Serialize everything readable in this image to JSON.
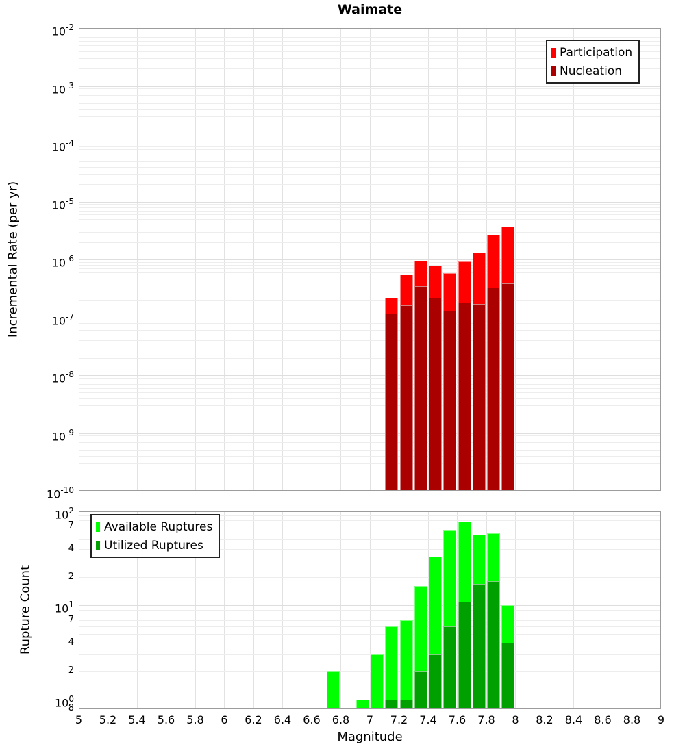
{
  "title": "Waimate",
  "x_axis": {
    "label": "Magnitude",
    "min": 5,
    "max": 9,
    "ticks": [
      {
        "value": 5,
        "label": "5"
      },
      {
        "value": 5.2,
        "label": "5.2"
      },
      {
        "value": 5.4,
        "label": "5.4"
      },
      {
        "value": 5.6,
        "label": "5.6"
      },
      {
        "value": 5.8,
        "label": "5.8"
      },
      {
        "value": 6,
        "label": "6"
      },
      {
        "value": 6.2,
        "label": "6.2"
      },
      {
        "value": 6.4,
        "label": "6.4"
      },
      {
        "value": 6.6,
        "label": "6.6"
      },
      {
        "value": 6.8,
        "label": "6.8"
      },
      {
        "value": 7,
        "label": "7"
      },
      {
        "value": 7.2,
        "label": "7.2"
      },
      {
        "value": 7.4,
        "label": "7.4"
      },
      {
        "value": 7.6,
        "label": "7.6"
      },
      {
        "value": 7.8,
        "label": "7.8"
      },
      {
        "value": 8,
        "label": "8"
      },
      {
        "value": 8.2,
        "label": "8.2"
      },
      {
        "value": 8.4,
        "label": "8.4"
      },
      {
        "value": 8.6,
        "label": "8.6"
      },
      {
        "value": 8.8,
        "label": "8.8"
      },
      {
        "value": 9,
        "label": "9"
      }
    ]
  },
  "top_panel": {
    "ylabel": "Incremental Rate (per yr)",
    "y_major_exponents": [
      -2,
      -3,
      -4,
      -5,
      -6,
      -7,
      -8,
      -9,
      -10
    ],
    "legend": [
      {
        "label": "Participation",
        "color": "#ff0000"
      },
      {
        "label": "Nucleation",
        "color": "#aa0000"
      }
    ]
  },
  "bottom_panel": {
    "ylabel": "Rupture Count",
    "y_major_exponents": [
      2,
      1,
      0
    ],
    "y_minor_labeled_ticks": [
      {
        "value": 70,
        "label": "7"
      },
      {
        "value": 40,
        "label": "4"
      },
      {
        "value": 20,
        "label": "2"
      },
      {
        "value": 7,
        "label": "7"
      },
      {
        "value": 4,
        "label": "4"
      },
      {
        "value": 2,
        "label": "2"
      },
      {
        "value": 0.8,
        "label": "8"
      }
    ],
    "legend": [
      {
        "label": "Available Ruptures",
        "color": "#00ff00"
      },
      {
        "label": "Utilized Ruptures",
        "color": "#00a000"
      }
    ]
  },
  "chart_data": [
    {
      "type": "bar",
      "panel": "top",
      "title": "Waimate",
      "xlabel": "Magnitude",
      "ylabel": "Incremental Rate (per yr)",
      "yscale": "log",
      "xlim": [
        5,
        9
      ],
      "ylim": [
        1e-10,
        0.01
      ],
      "bin_width": 0.1,
      "grid": true,
      "overlay": true,
      "legend_position": "top-right",
      "x": [
        7.15,
        7.25,
        7.35,
        7.45,
        7.55,
        7.65,
        7.75,
        7.85,
        7.95
      ],
      "series": [
        {
          "name": "Participation",
          "color": "#ff0000",
          "values": [
            2.2e-07,
            5.5e-07,
            9.5e-07,
            7.8e-07,
            5.8e-07,
            9.3e-07,
            1.3e-06,
            2.7e-06,
            3.7e-06
          ]
        },
        {
          "name": "Nucleation",
          "color": "#aa0000",
          "values": [
            1.15e-07,
            1.6e-07,
            3.5e-07,
            2.2e-07,
            1.3e-07,
            1.8e-07,
            1.7e-07,
            3.3e-07,
            3.9e-07
          ]
        }
      ]
    },
    {
      "type": "bar",
      "panel": "bottom",
      "xlabel": "Magnitude",
      "ylabel": "Rupture Count",
      "yscale": "log",
      "xlim": [
        5,
        9
      ],
      "ylim": [
        0.8,
        100
      ],
      "bin_width": 0.1,
      "grid": true,
      "overlay": true,
      "legend_position": "top-left",
      "x": [
        6.75,
        6.95,
        7.05,
        7.15,
        7.25,
        7.35,
        7.45,
        7.55,
        7.65,
        7.75,
        7.85,
        7.95
      ],
      "series": [
        {
          "name": "Available Ruptures",
          "color": "#00ff00",
          "values": [
            2,
            1,
            3,
            6,
            7,
            16,
            33,
            64,
            78,
            57,
            59,
            10
          ]
        },
        {
          "name": "Utilized Ruptures",
          "color": "#00a000",
          "values": [
            0,
            0,
            0,
            1,
            1,
            2,
            3,
            6,
            11,
            17,
            18,
            4
          ]
        }
      ]
    }
  ]
}
